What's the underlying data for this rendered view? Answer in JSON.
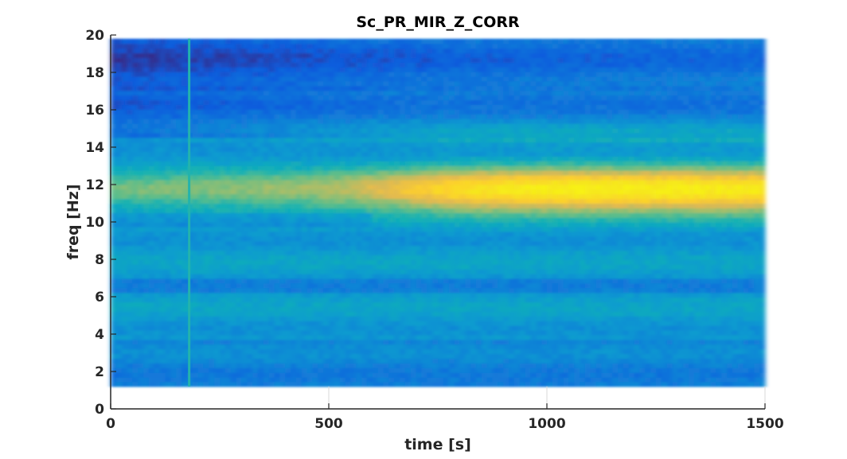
{
  "chart_data": {
    "type": "heatmap",
    "title": "Sc_PR_MIR_Z_CORR",
    "xlabel": "time [s]",
    "ylabel": "freq [Hz]",
    "xlim": [
      0,
      1500
    ],
    "ylim": [
      0,
      20
    ],
    "x_ticks": [
      "0",
      "500",
      "1000",
      "1500"
    ],
    "y_ticks": [
      "0",
      "2",
      "4",
      "6",
      "8",
      "10",
      "12",
      "14",
      "16",
      "18",
      "20"
    ],
    "data_extent": {
      "x": [
        0,
        1500
      ],
      "y": [
        1.2,
        19.8
      ]
    },
    "colormap": "parula",
    "grid": true,
    "features": {
      "dominant_band_hz": 11.7,
      "band_intensity_by_time": [
        [
          0,
          0.55
        ],
        [
          300,
          0.58
        ],
        [
          500,
          0.62
        ],
        [
          650,
          0.75
        ],
        [
          800,
          0.88
        ],
        [
          1000,
          0.95
        ],
        [
          1300,
          0.95
        ],
        [
          1500,
          0.92
        ]
      ],
      "vertical_artifact_time_s": 180,
      "low_intensity_region": {
        "freq_hz": [
          15,
          19.8
        ],
        "time_s": [
          0,
          500
        ]
      }
    }
  }
}
